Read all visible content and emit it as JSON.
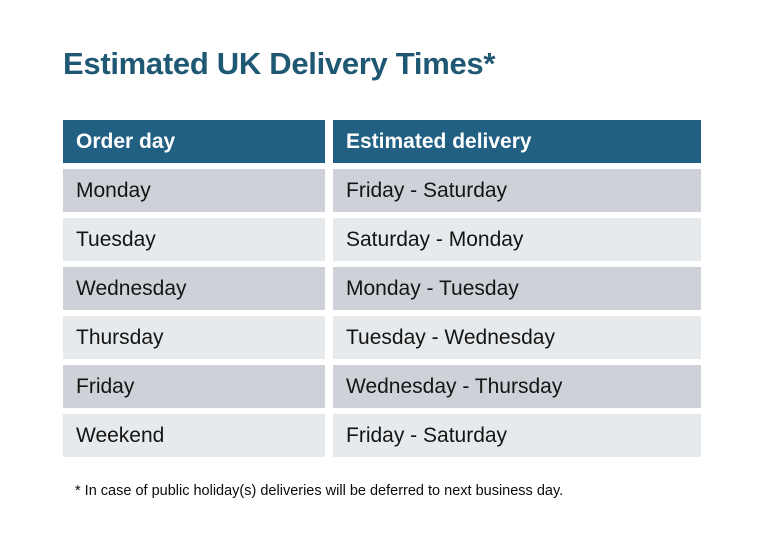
{
  "title": "Estimated UK Delivery Times*",
  "table": {
    "headers": [
      "Order day",
      "Estimated delivery"
    ],
    "rows": [
      [
        "Monday",
        "Friday - Saturday"
      ],
      [
        "Tuesday",
        "Saturday - Monday"
      ],
      [
        "Wednesday",
        "Monday - Tuesday"
      ],
      [
        "Thursday",
        "Tuesday - Wednesday"
      ],
      [
        "Friday",
        "Wednesday - Thursday"
      ],
      [
        "Weekend",
        "Friday - Saturday"
      ]
    ]
  },
  "footnote": "* In case of public holiday(s) deliveries will be deferred to next business day.",
  "colors": {
    "title_text": "#1e5873",
    "header_bg": "#215f83",
    "header_text": "#ffffff",
    "row_odd_bg": "#ced2d8",
    "row_even_bg": "#e7eaec",
    "cell_text": "#141414",
    "background": "#ffffff"
  },
  "chart_data": {
    "type": "table",
    "title": "Estimated UK Delivery Times*",
    "columns": [
      "Order day",
      "Estimated delivery"
    ],
    "rows": [
      [
        "Monday",
        "Friday - Saturday"
      ],
      [
        "Tuesday",
        "Saturday - Monday"
      ],
      [
        "Wednesday",
        "Monday - Tuesday"
      ],
      [
        "Thursday",
        "Tuesday - Wednesday"
      ],
      [
        "Friday",
        "Wednesday - Thursday"
      ],
      [
        "Weekend",
        "Friday - Saturday"
      ]
    ],
    "footnote": "* In case of public holiday(s) deliveries will be deferred to next business day.",
    "layout": {
      "header_style": "dark-teal band, white bold text",
      "body_style": "alternating gray rows (dark, light), white gaps between rows and columns",
      "legend": "none",
      "grid": "off"
    }
  }
}
